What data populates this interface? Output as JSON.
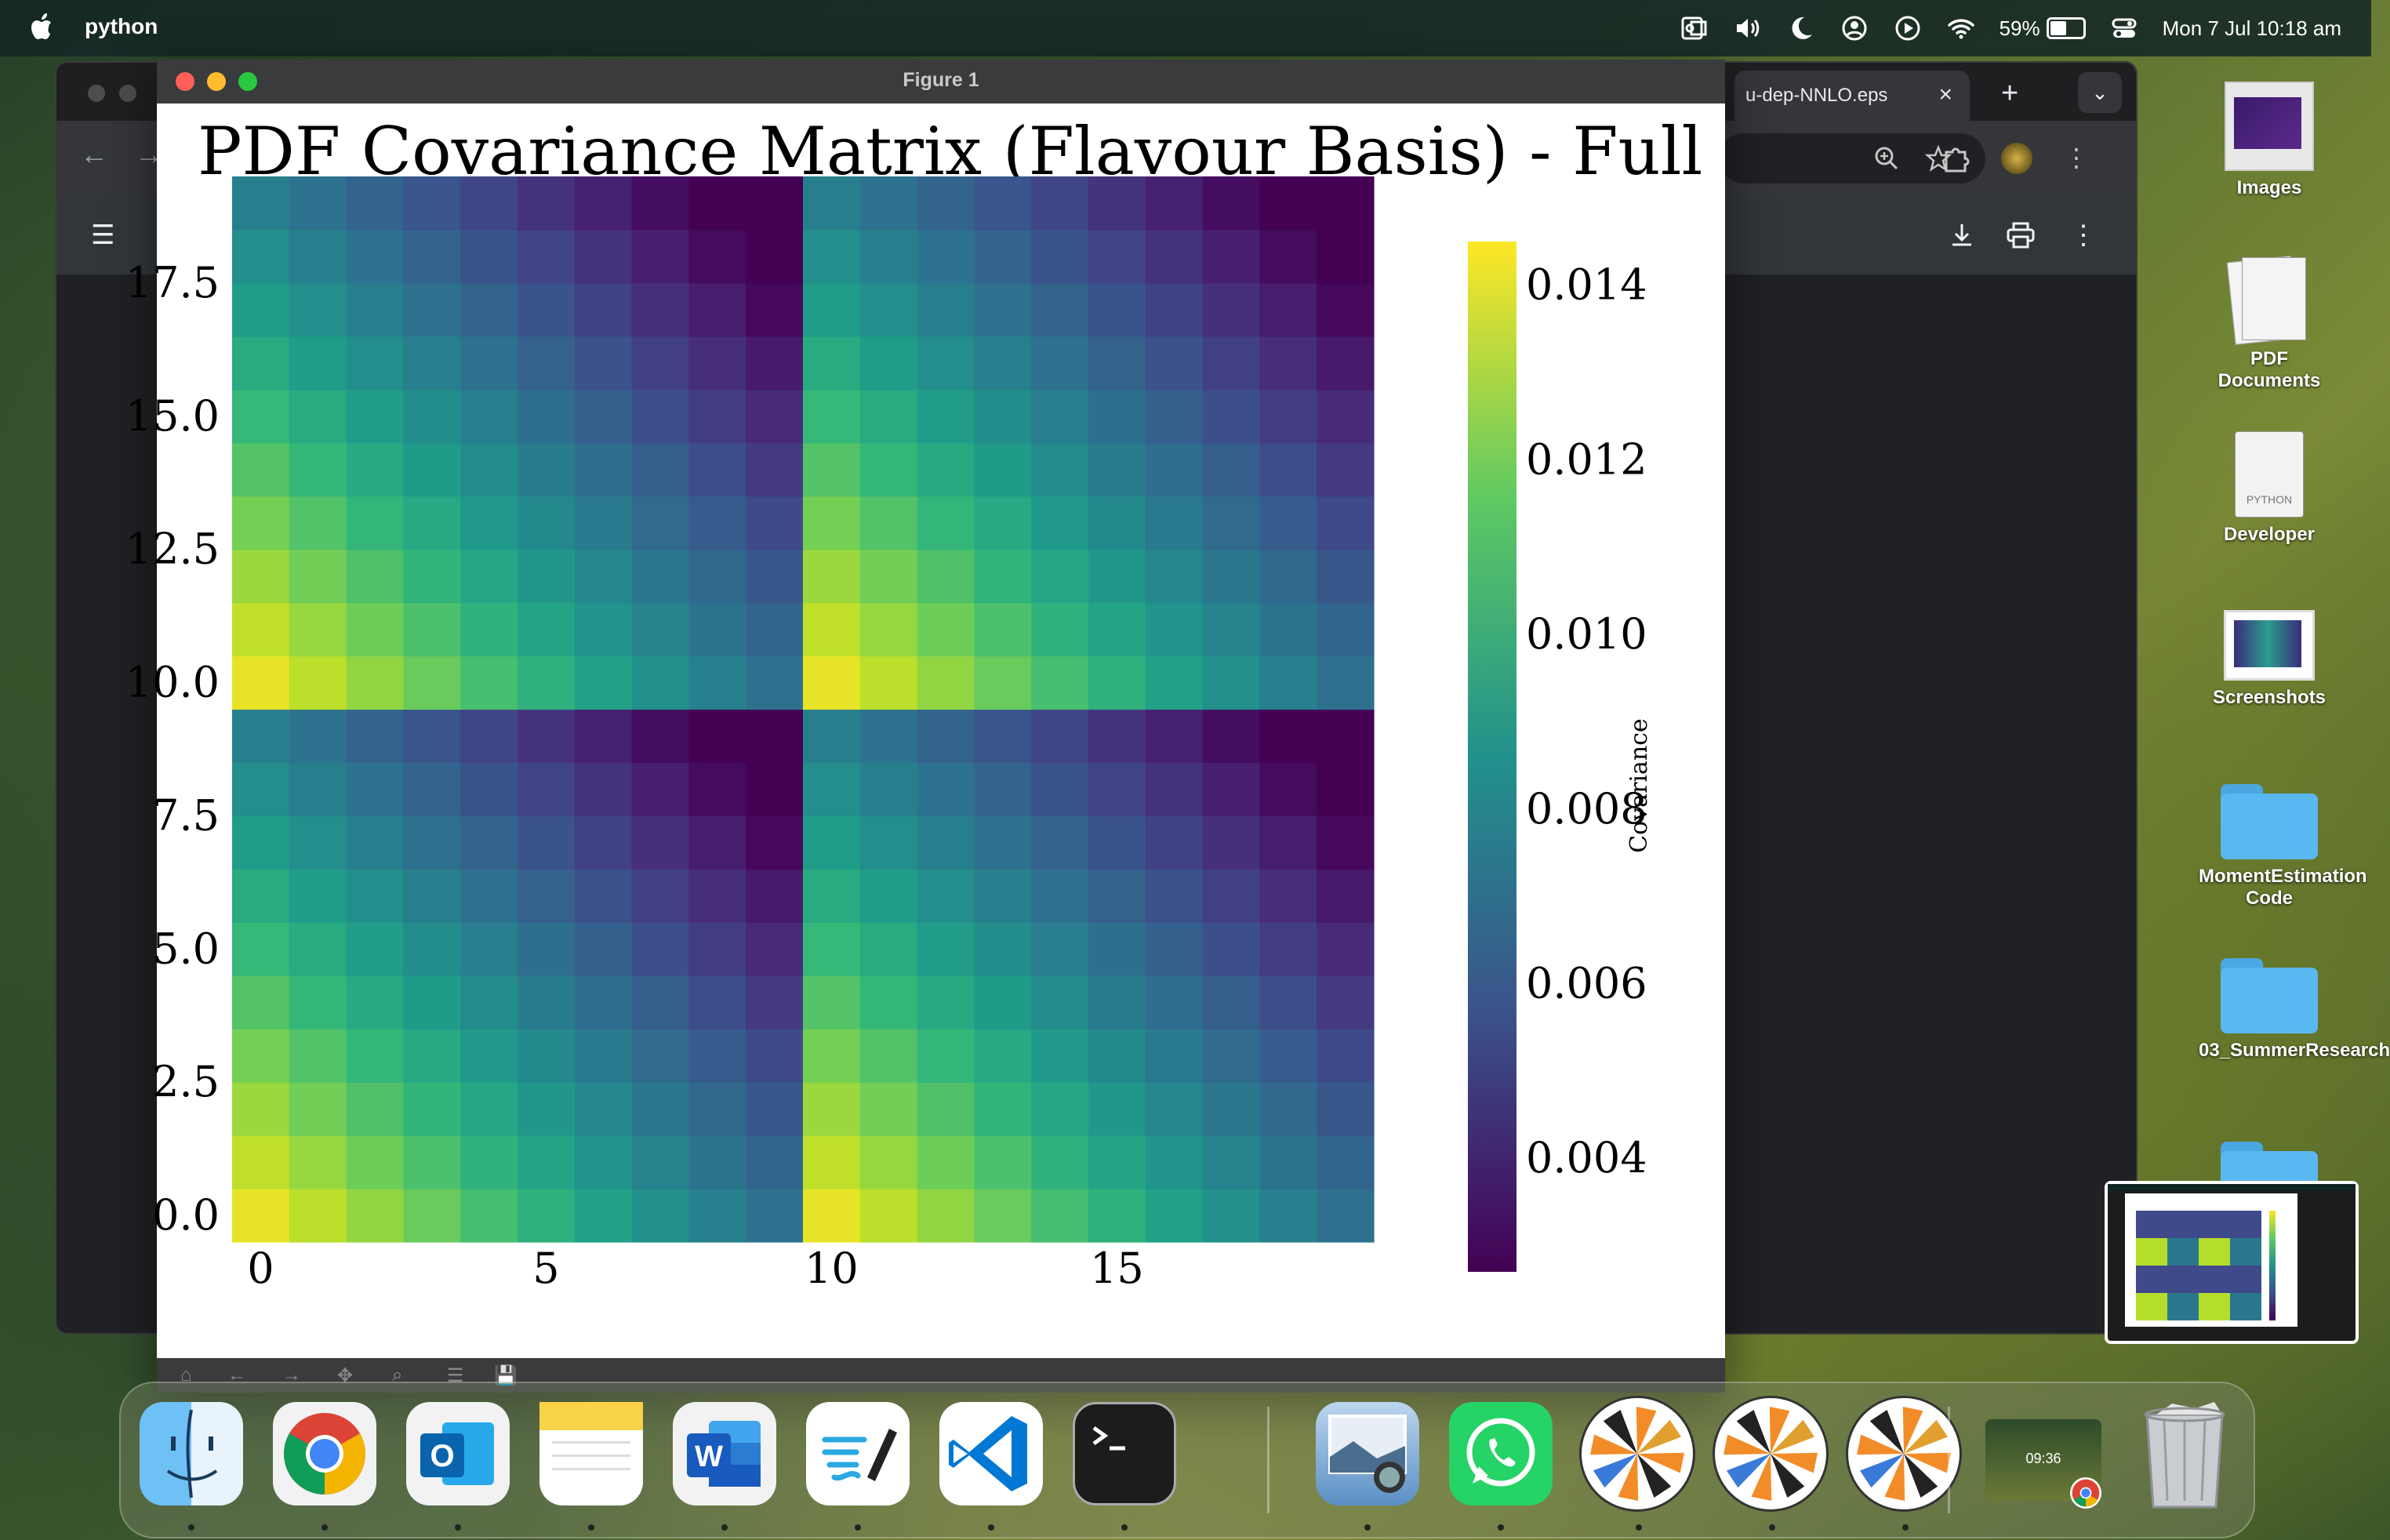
{
  "menubar": {
    "app_name": "python",
    "battery_percent": "59%",
    "battery_level": 0.59,
    "datetime": "Mon 7 Jul  10:18 am"
  },
  "chrome": {
    "tab_title": "u-dep-NNLO.eps",
    "tab_close": "×",
    "new_tab": "+"
  },
  "figure_window": {
    "title": "Figure 1"
  },
  "chart_data": {
    "type": "heatmap",
    "title": "PDF Covariance Matrix (Flavour Basis) - Full",
    "xlabel": "",
    "ylabel": "",
    "x_ticks": [
      "0",
      "5",
      "10",
      "15"
    ],
    "y_ticks": [
      "0.0",
      "2.5",
      "5.0",
      "7.5",
      "10.0",
      "12.5",
      "15.0",
      "17.5"
    ],
    "grid_size": [
      20,
      20
    ],
    "colormap": "viridis",
    "colorbar_label": "Covariance",
    "colorbar_ticks": [
      "0.004",
      "0.006",
      "0.008",
      "0.010",
      "0.012",
      "0.014"
    ],
    "value_range": [
      0.0027,
      0.0145
    ],
    "grid": false
  },
  "desktop_icons": [
    {
      "label": "Images"
    },
    {
      "label": "PDF Documents"
    },
    {
      "label": "Developer",
      "badge": "PYTHON"
    },
    {
      "label": "Screenshots"
    },
    {
      "label": "MomentEstimation Code"
    },
    {
      "label": "03_SummerResearch"
    }
  ],
  "dock": {
    "apps": [
      "Finder",
      "Google Chrome",
      "Microsoft Outlook",
      "Notes",
      "Microsoft Word",
      "Freeform",
      "Visual Studio Code",
      "Terminal",
      "Preview",
      "WhatsApp",
      "Python",
      "Python",
      "Python",
      "Desktop Preview",
      "Trash"
    ],
    "desktop_thumb_time": "09:36"
  },
  "colors": {
    "menubar": "#142624",
    "chrome_bg": "#202124",
    "figure_titlebar": "#3a3b3d",
    "close": "#ff5f57",
    "minimize": "#febc2e",
    "zoom": "#28c840"
  }
}
